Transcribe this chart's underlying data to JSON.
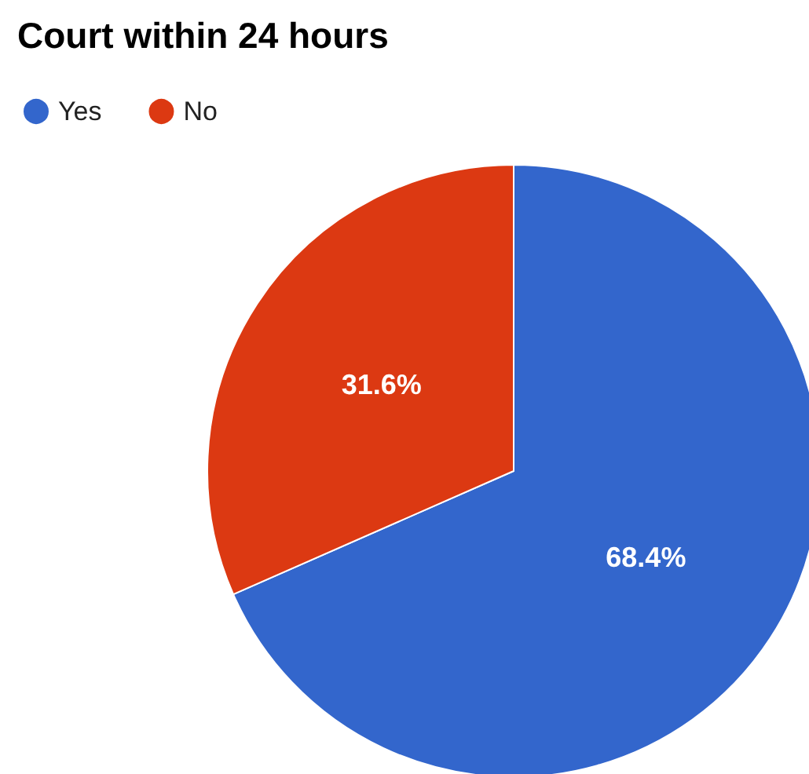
{
  "chart_data": {
    "type": "pie",
    "title": "Court within 24 hours",
    "categories": [
      "Yes",
      "No"
    ],
    "values": [
      68.4,
      31.6
    ],
    "colors": [
      "#3366cc",
      "#dc3912"
    ],
    "value_labels": [
      "68.4%",
      "31.6%"
    ],
    "legend": "top left"
  }
}
